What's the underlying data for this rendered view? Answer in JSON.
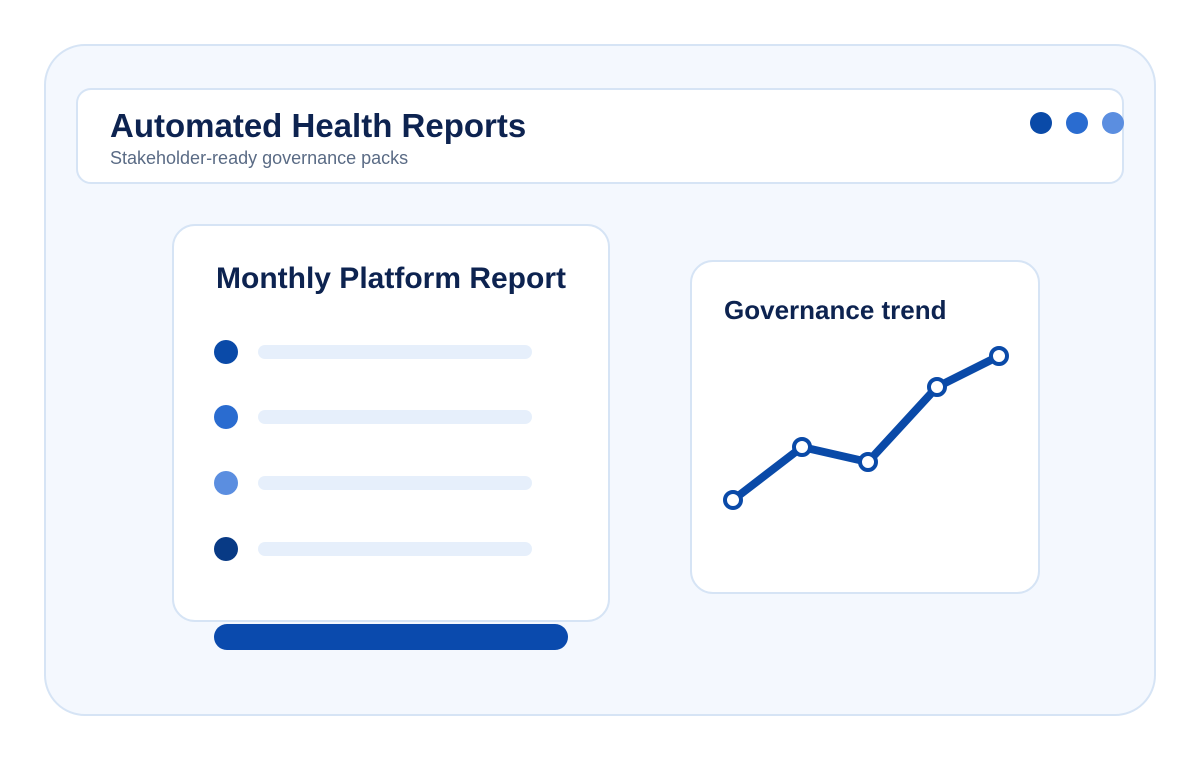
{
  "header": {
    "title": "Automated Health Reports",
    "subtitle": "Stakeholder-ready governance packs"
  },
  "report": {
    "title": "Monthly Platform Report"
  },
  "trend": {
    "title": "Governance trend"
  }
}
